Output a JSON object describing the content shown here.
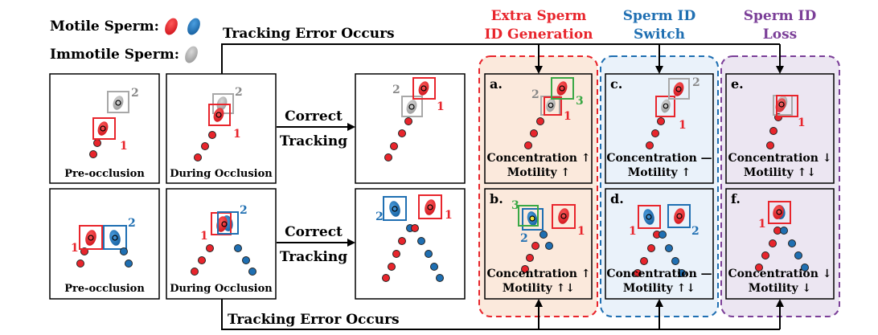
{
  "legend": {
    "motile_label": "Motile Sperm:",
    "immotile_label": "Immotile Sperm:"
  },
  "tracking_error_top": "Tracking Error Occurs",
  "tracking_error_bottom": "Tracking Error Occurs",
  "correct_tracking_top": [
    "Correct",
    "Tracking"
  ],
  "correct_tracking_bottom": [
    "Correct",
    "Tracking"
  ],
  "panel_captions": {
    "pre_occlusion": "Pre-occlusion",
    "during_occlusion": "During Occlusion"
  },
  "categories": {
    "extra": {
      "title": [
        "Extra Sperm",
        "ID Generation"
      ],
      "color": "#e8252c"
    },
    "switch": {
      "title": [
        "Sperm ID",
        "Switch"
      ],
      "color": "#1f6fb2"
    },
    "loss": {
      "title": [
        "Sperm ID",
        "Loss"
      ],
      "color": "#7b3f98"
    }
  },
  "cases": {
    "a": {
      "letter": "a.",
      "line1": "Concentration ↑",
      "line2": "Motility ↑"
    },
    "b": {
      "letter": "b.",
      "line1": "Concentration ↑",
      "line2": "Motility ↑↓"
    },
    "c": {
      "letter": "c.",
      "line1": "Concentration —",
      "line2": "Motility ↑"
    },
    "d": {
      "letter": "d.",
      "line1": "Concentration —",
      "line2": "Motility ↑↓"
    },
    "e": {
      "letter": "e.",
      "line1": "Concentration ↓",
      "line2": "Motility ↑↓"
    },
    "f": {
      "letter": "f.",
      "line1": "Concentration ↓",
      "line2": "Motility ↓"
    }
  },
  "id_labels": {
    "one": "1",
    "two": "2",
    "three": "3"
  },
  "colors": {
    "red": "#e8252c",
    "blue": "#1f6fb2",
    "gray": "#a8a8a8",
    "green": "#3aa845",
    "extra_bg": "#fbe9dc",
    "switch_bg": "#eaf2fa",
    "loss_bg": "#ece6f2"
  }
}
